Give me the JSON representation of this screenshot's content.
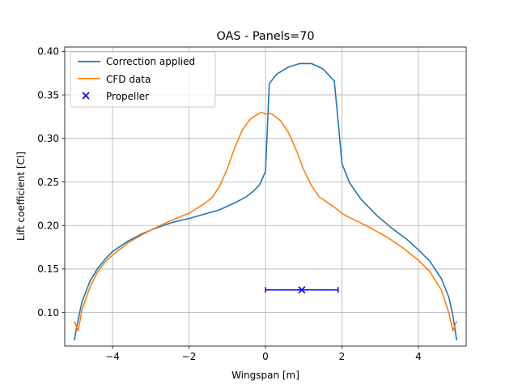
{
  "chart_data": {
    "type": "line",
    "title": "OAS - Panels=70",
    "xlabel": "Wingspan [m]",
    "ylabel": "Lift coefficient [Cl]",
    "xlim": [
      -5.25,
      5.25
    ],
    "ylim": [
      0.0615,
      0.405
    ],
    "grid": true,
    "legend_position": "top-left",
    "x_ticks": [
      -4,
      -2,
      0,
      2,
      4
    ],
    "x_tick_labels": [
      "−4",
      "−2",
      "0",
      "2",
      "4"
    ],
    "y_ticks": [
      0.1,
      0.15,
      0.2,
      0.25,
      0.3,
      0.35,
      0.4
    ],
    "y_tick_labels": [
      "0.10",
      "0.15",
      "0.20",
      "0.25",
      "0.30",
      "0.35",
      "0.40"
    ],
    "series": [
      {
        "name": "Correction applied",
        "color": "#1f77b4",
        "x": [
          -5.0,
          -4.9,
          -4.8,
          -4.6,
          -4.4,
          -4.2,
          -4.0,
          -3.6,
          -3.2,
          -2.8,
          -2.4,
          -2.0,
          -1.6,
          -1.2,
          -0.8,
          -0.5,
          -0.3,
          -0.15,
          0.0,
          0.1,
          0.3,
          0.6,
          0.9,
          1.2,
          1.5,
          1.8,
          1.9,
          2.0,
          2.2,
          2.5,
          2.9,
          3.3,
          3.7,
          4.0,
          4.3,
          4.6,
          4.8,
          4.9,
          5.0
        ],
        "y": [
          0.068,
          0.092,
          0.112,
          0.135,
          0.15,
          0.161,
          0.17,
          0.182,
          0.191,
          0.198,
          0.204,
          0.208,
          0.213,
          0.218,
          0.226,
          0.233,
          0.24,
          0.247,
          0.262,
          0.363,
          0.374,
          0.382,
          0.386,
          0.386,
          0.38,
          0.366,
          0.32,
          0.271,
          0.249,
          0.23,
          0.212,
          0.197,
          0.184,
          0.172,
          0.159,
          0.139,
          0.117,
          0.097,
          0.068
        ]
      },
      {
        "name": "CFD data",
        "color": "#ff7f0e",
        "x": [
          -5.0,
          -4.9,
          -4.8,
          -4.6,
          -4.4,
          -4.2,
          -4.0,
          -3.6,
          -3.2,
          -2.8,
          -2.4,
          -2.0,
          -1.6,
          -1.4,
          -1.2,
          -1.0,
          -0.8,
          -0.6,
          -0.4,
          -0.2,
          -0.1,
          0.0,
          0.1,
          0.2,
          0.4,
          0.6,
          0.8,
          1.0,
          1.2,
          1.4,
          1.6,
          1.8,
          2.0,
          2.2,
          2.4,
          2.8,
          3.2,
          3.6,
          4.0,
          4.3,
          4.6,
          4.8,
          4.9,
          5.0
        ],
        "y": [
          0.09,
          0.079,
          0.103,
          0.128,
          0.146,
          0.158,
          0.166,
          0.18,
          0.19,
          0.199,
          0.207,
          0.214,
          0.225,
          0.232,
          0.245,
          0.265,
          0.29,
          0.31,
          0.322,
          0.328,
          0.33,
          0.328,
          0.329,
          0.327,
          0.32,
          0.307,
          0.287,
          0.264,
          0.246,
          0.233,
          0.227,
          0.221,
          0.214,
          0.209,
          0.205,
          0.196,
          0.186,
          0.174,
          0.16,
          0.147,
          0.126,
          0.099,
          0.079,
          0.09
        ]
      },
      {
        "name": "Propeller",
        "color": "#0000ff",
        "type": "errorbar",
        "x": [
          0.95
        ],
        "y": [
          0.126
        ],
        "xerr": [
          0.95
        ]
      }
    ]
  }
}
